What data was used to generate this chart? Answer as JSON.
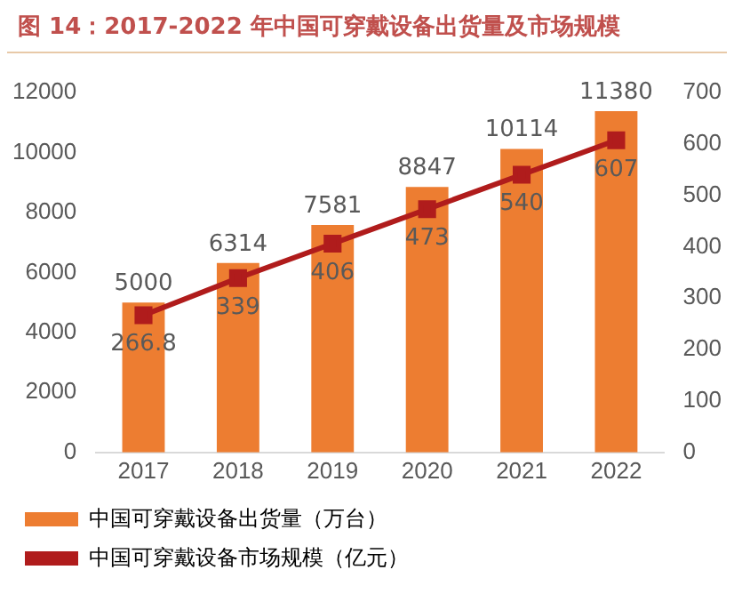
{
  "chart_data": {
    "type": "bar",
    "title": "图 14：2017-2022 年中国可穿戴设备出货量及市场规模",
    "categories": [
      "2017",
      "2018",
      "2019",
      "2020",
      "2021",
      "2022"
    ],
    "series": [
      {
        "name": "中国可穿戴设备出货量（万台）",
        "color": "#ed7d31",
        "values": [
          5000,
          6314,
          7581,
          8847,
          10114,
          11380
        ]
      },
      {
        "name": "中国可穿戴设备市场规模（亿元）",
        "type": "line",
        "axis": "y2",
        "color": "#b01c1c",
        "marker": "square",
        "values": [
          266.8,
          339,
          406,
          473,
          540,
          607
        ]
      }
    ],
    "ylim": [
      0,
      12000
    ],
    "yticks": [
      0,
      2000,
      4000,
      6000,
      8000,
      10000,
      12000
    ],
    "y2lim": [
      0,
      700
    ],
    "y2ticks": [
      0,
      100,
      200,
      300,
      400,
      500,
      600,
      700
    ],
    "grid": false,
    "legend": "bottom",
    "data_labels": true
  }
}
